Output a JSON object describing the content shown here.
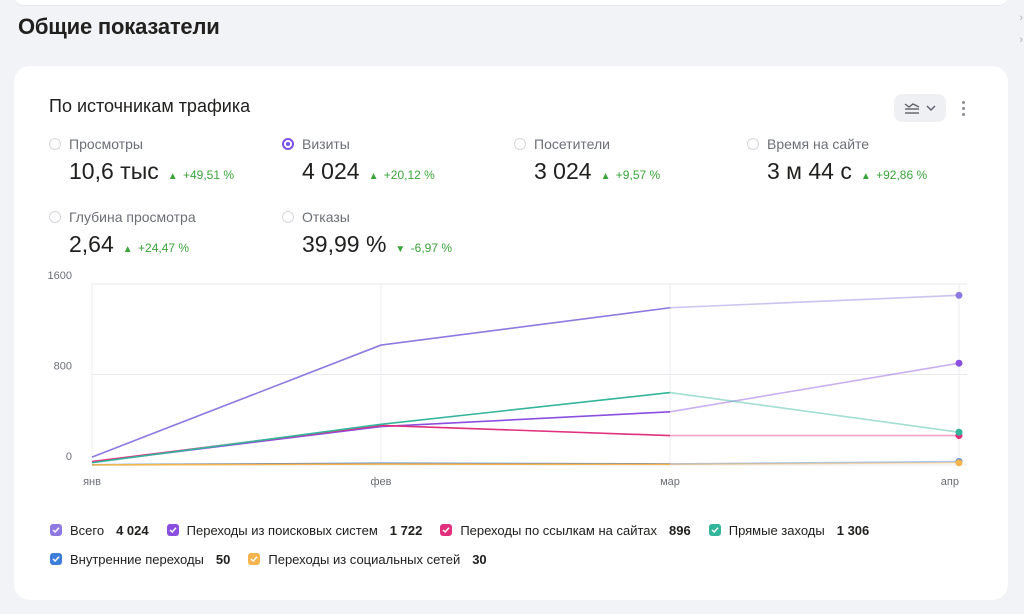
{
  "section_title": "Общие показатели",
  "card": {
    "title": "По источникам трафика",
    "toggle_icon": "chart-type-icon",
    "more_icon": "more-vertical-icon"
  },
  "metrics": [
    {
      "label": "Просмотры",
      "value": "10,6 тыс",
      "delta": "+49,51 %",
      "direction": "up",
      "selected": false
    },
    {
      "label": "Визиты",
      "value": "4 024",
      "delta": "+20,12 %",
      "direction": "up",
      "selected": true
    },
    {
      "label": "Посетители",
      "value": "3 024",
      "delta": "+9,57 %",
      "direction": "up",
      "selected": false
    },
    {
      "label": "Время на сайте",
      "value": "3 м 44 с",
      "delta": "+92,86 %",
      "direction": "up",
      "selected": false
    },
    {
      "label": "Глубина просмотра",
      "value": "2,64",
      "delta": "+24,47 %",
      "direction": "up",
      "selected": false
    },
    {
      "label": "Отказы",
      "value": "39,99 %",
      "delta": "-6,97 %",
      "direction": "down",
      "selected": false
    }
  ],
  "chart_data": {
    "type": "line",
    "x": [
      "янв",
      "фев",
      "мар",
      "апр"
    ],
    "y_ticks": [
      "1600",
      "800",
      "0"
    ],
    "ylim": [
      0,
      1600
    ],
    "grid": true,
    "series": [
      {
        "name": "Всего",
        "color": "#8e79e0",
        "values": [
          70,
          1060,
          1390,
          1500
        ]
      },
      {
        "name": "Переходы из поисковых систем",
        "color": "#8a4fe0",
        "values": [
          25,
          340,
          470,
          900
        ]
      },
      {
        "name": "Переходы по ссылкам на сайтах",
        "color": "#e0307e",
        "values": [
          30,
          350,
          260,
          260
        ]
      },
      {
        "name": "Прямые заходы",
        "color": "#33b59b",
        "values": [
          20,
          360,
          640,
          290
        ]
      },
      {
        "name": "Внутренние переходы",
        "color": "#3d7fd8",
        "values": [
          2,
          15,
          10,
          30
        ]
      },
      {
        "name": "Переходы из социальных сетей",
        "color": "#f5b44d",
        "values": [
          1,
          8,
          6,
          20
        ]
      }
    ]
  },
  "legend": [
    {
      "name": "Всего",
      "total": "4 024",
      "color": "#8e79e0"
    },
    {
      "name": "Переходы из поисковых систем",
      "total": "1 722",
      "color": "#8a4fe0"
    },
    {
      "name": "Переходы по ссылкам на сайтах",
      "total": "896",
      "color": "#e0307e"
    },
    {
      "name": "Прямые заходы",
      "total": "1 306",
      "color": "#33b59b"
    },
    {
      "name": "Внутренние переходы",
      "total": "50",
      "color": "#3d7fd8"
    },
    {
      "name": "Переходы из социальных сетей",
      "total": "30",
      "color": "#f5b44d"
    }
  ]
}
